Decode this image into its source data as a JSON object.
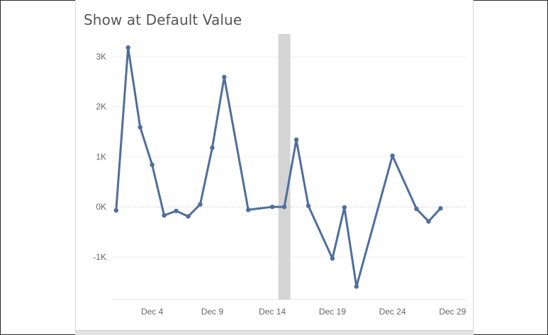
{
  "chart_data": {
    "type": "line",
    "title": "Show at Default Value",
    "xlabel": "",
    "ylabel": "",
    "x_tick_labels": [
      "Dec 4",
      "Dec 9",
      "Dec 14",
      "Dec 19",
      "Dec 24",
      "Dec 29"
    ],
    "x_ticks": [
      4,
      9,
      14,
      19,
      24,
      29
    ],
    "y_tick_labels": [
      "3K",
      "2K",
      "1K",
      "0K",
      "-1K"
    ],
    "y_ticks": [
      3000,
      2000,
      1000,
      0,
      -1000
    ],
    "xlim": [
      0.6,
      30.1
    ],
    "ylim": [
      -1850,
      3450
    ],
    "highlight_band": [
      14.5,
      15.5
    ],
    "grid": true,
    "series": [
      {
        "color": "#4e6e9e",
        "x": [
          1,
          2,
          3,
          4,
          5,
          6,
          7,
          8,
          9,
          10,
          12,
          14,
          15,
          16,
          17,
          19,
          20,
          21,
          24,
          26,
          27,
          28
        ],
        "y": [
          -70,
          3180,
          1590,
          840,
          -170,
          -80,
          -190,
          50,
          1180,
          2590,
          -60,
          0,
          0,
          1340,
          20,
          -1030,
          -10,
          -1590,
          1020,
          -40,
          -290,
          -30
        ]
      }
    ]
  }
}
